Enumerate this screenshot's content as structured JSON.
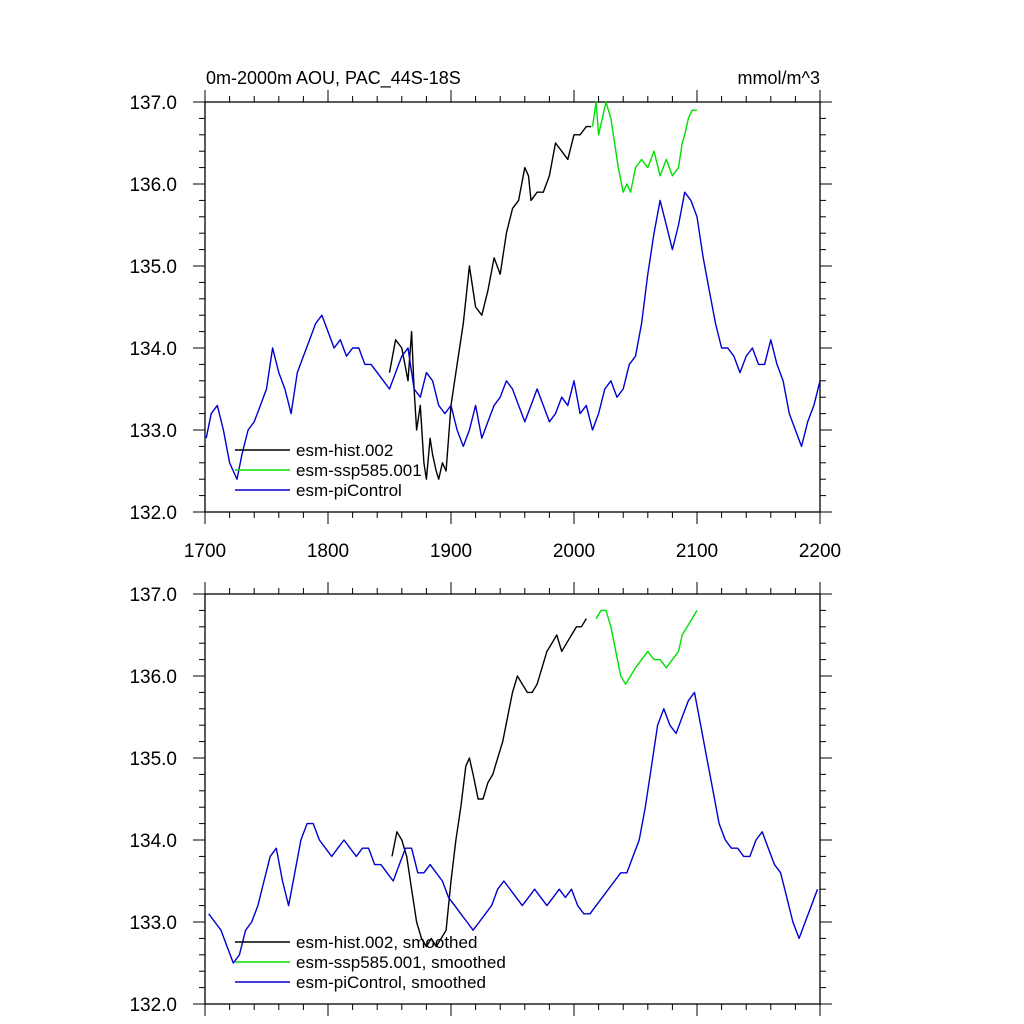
{
  "chart_data": [
    {
      "type": "line",
      "title": "0m-2000m AOU, PAC_44S-18S",
      "units": "mmol/m^3",
      "xlim": [
        1700,
        2200
      ],
      "ylim": [
        132.0,
        137.0
      ],
      "xticks": [
        "1700",
        "1800",
        "1900",
        "2000",
        "2100",
        "2200"
      ],
      "yticks": [
        "132.0",
        "133.0",
        "134.0",
        "135.0",
        "136.0",
        "137.0"
      ],
      "grid": false,
      "legend_position": "bottom-left",
      "series": [
        {
          "name": "esm-hist.002",
          "color": "#000000",
          "x": [
            1850,
            1855,
            1860,
            1865,
            1868,
            1870,
            1872,
            1875,
            1878,
            1880,
            1883,
            1885,
            1888,
            1890,
            1893,
            1896,
            1900,
            1905,
            1910,
            1915,
            1920,
            1925,
            1930,
            1935,
            1940,
            1945,
            1950,
            1955,
            1960,
            1963,
            1965,
            1970,
            1975,
            1980,
            1985,
            1990,
            1995,
            2000,
            2005,
            2010,
            2014
          ],
          "y": [
            133.7,
            134.1,
            134.0,
            133.6,
            134.2,
            133.5,
            133.0,
            133.3,
            132.6,
            132.4,
            132.9,
            132.7,
            132.5,
            132.4,
            132.6,
            132.5,
            133.3,
            133.8,
            134.3,
            135.0,
            134.5,
            134.4,
            134.7,
            135.1,
            134.9,
            135.4,
            135.7,
            135.8,
            136.2,
            136.1,
            135.8,
            135.9,
            135.9,
            136.1,
            136.5,
            136.4,
            136.3,
            136.6,
            136.6,
            136.7,
            136.7
          ]
        },
        {
          "name": "esm-ssp585.001",
          "color": "#00e000",
          "x": [
            2015,
            2018,
            2020,
            2023,
            2026,
            2030,
            2033,
            2036,
            2040,
            2043,
            2046,
            2050,
            2055,
            2060,
            2065,
            2070,
            2075,
            2080,
            2085,
            2088,
            2090,
            2093,
            2096,
            2100
          ],
          "y": [
            136.7,
            137.0,
            136.6,
            136.8,
            137.0,
            136.8,
            136.5,
            136.2,
            135.9,
            136.0,
            135.9,
            136.2,
            136.3,
            136.2,
            136.4,
            136.1,
            136.3,
            136.1,
            136.2,
            136.5,
            136.6,
            136.8,
            136.9,
            136.9
          ]
        },
        {
          "name": "esm-piControl",
          "color": "#0000d0",
          "x": [
            1701,
            1705,
            1710,
            1715,
            1720,
            1723,
            1726,
            1730,
            1735,
            1740,
            1745,
            1750,
            1755,
            1760,
            1765,
            1770,
            1775,
            1780,
            1785,
            1790,
            1795,
            1800,
            1805,
            1810,
            1815,
            1820,
            1825,
            1830,
            1835,
            1840,
            1845,
            1850,
            1855,
            1860,
            1865,
            1870,
            1875,
            1880,
            1885,
            1890,
            1895,
            1900,
            1905,
            1910,
            1915,
            1920,
            1925,
            1930,
            1935,
            1940,
            1945,
            1950,
            1955,
            1960,
            1965,
            1970,
            1975,
            1980,
            1985,
            1990,
            1995,
            2000,
            2005,
            2010,
            2015,
            2020,
            2025,
            2030,
            2035,
            2040,
            2045,
            2050,
            2055,
            2060,
            2065,
            2070,
            2075,
            2080,
            2085,
            2090,
            2095,
            2100,
            2105,
            2110,
            2115,
            2120,
            2125,
            2130,
            2135,
            2140,
            2145,
            2150,
            2155,
            2160,
            2165,
            2170,
            2175,
            2180,
            2185,
            2190,
            2195,
            2200
          ],
          "y": [
            132.9,
            133.2,
            133.3,
            133.0,
            132.6,
            132.5,
            132.4,
            132.7,
            133.0,
            133.1,
            133.3,
            133.5,
            134.0,
            133.7,
            133.5,
            133.2,
            133.7,
            133.9,
            134.1,
            134.3,
            134.4,
            134.2,
            134.0,
            134.1,
            133.9,
            134.0,
            134.0,
            133.8,
            133.8,
            133.7,
            133.6,
            133.5,
            133.7,
            133.9,
            134.0,
            133.5,
            133.4,
            133.7,
            133.6,
            133.3,
            133.2,
            133.3,
            133.0,
            132.8,
            133.0,
            133.3,
            132.9,
            133.1,
            133.3,
            133.4,
            133.6,
            133.5,
            133.3,
            133.1,
            133.3,
            133.5,
            133.3,
            133.1,
            133.2,
            133.4,
            133.3,
            133.6,
            133.2,
            133.3,
            133.0,
            133.2,
            133.5,
            133.6,
            133.4,
            133.5,
            133.8,
            133.9,
            134.3,
            134.9,
            135.4,
            135.8,
            135.5,
            135.2,
            135.5,
            135.9,
            135.8,
            135.6,
            135.1,
            134.7,
            134.3,
            134.0,
            134.0,
            133.9,
            133.7,
            133.9,
            134.0,
            133.8,
            133.8,
            134.1,
            133.8,
            133.6,
            133.2,
            133.0,
            132.8,
            133.1,
            133.3,
            133.6
          ]
        }
      ]
    },
    {
      "type": "line",
      "title": "",
      "xlim": [
        1700,
        2200
      ],
      "ylim": [
        132.0,
        137.0
      ],
      "yticks": [
        "132.0",
        "133.0",
        "134.0",
        "135.0",
        "136.0",
        "137.0"
      ],
      "grid": false,
      "legend_position": "bottom-left",
      "series": [
        {
          "name": "esm-hist.002, smoothed",
          "color": "#000000",
          "x": [
            1852,
            1856,
            1860,
            1864,
            1868,
            1872,
            1876,
            1880,
            1884,
            1888,
            1892,
            1896,
            1900,
            1904,
            1908,
            1912,
            1915,
            1918,
            1922,
            1926,
            1930,
            1934,
            1938,
            1942,
            1946,
            1950,
            1954,
            1958,
            1962,
            1966,
            1970,
            1974,
            1978,
            1982,
            1986,
            1990,
            1994,
            1998,
            2002,
            2006,
            2010
          ],
          "y": [
            133.8,
            134.1,
            134.0,
            133.8,
            133.4,
            133.0,
            132.8,
            132.7,
            132.8,
            132.7,
            132.8,
            132.9,
            133.5,
            134.0,
            134.4,
            134.9,
            135.0,
            134.8,
            134.5,
            134.5,
            134.7,
            134.8,
            135.0,
            135.2,
            135.5,
            135.8,
            136.0,
            135.9,
            135.8,
            135.8,
            135.9,
            136.1,
            136.3,
            136.4,
            136.5,
            136.3,
            136.4,
            136.5,
            136.6,
            136.6,
            136.7
          ]
        },
        {
          "name": "esm-ssp585.001, smoothed",
          "color": "#00e000",
          "x": [
            2018,
            2022,
            2026,
            2030,
            2034,
            2038,
            2042,
            2046,
            2050,
            2055,
            2060,
            2065,
            2070,
            2075,
            2080,
            2085,
            2088,
            2092,
            2096,
            2100
          ],
          "y": [
            136.7,
            136.8,
            136.8,
            136.6,
            136.3,
            136.0,
            135.9,
            136.0,
            136.1,
            136.2,
            136.3,
            136.2,
            136.2,
            136.1,
            136.2,
            136.3,
            136.5,
            136.6,
            136.7,
            136.8
          ]
        },
        {
          "name": "esm-piControl, smoothed",
          "color": "#0000d0",
          "x": [
            1703,
            1708,
            1713,
            1718,
            1723,
            1728,
            1733,
            1738,
            1743,
            1748,
            1753,
            1758,
            1763,
            1768,
            1773,
            1778,
            1783,
            1788,
            1793,
            1798,
            1803,
            1808,
            1813,
            1818,
            1823,
            1828,
            1833,
            1838,
            1843,
            1848,
            1853,
            1858,
            1863,
            1868,
            1873,
            1878,
            1883,
            1888,
            1893,
            1898,
            1903,
            1908,
            1913,
            1918,
            1923,
            1928,
            1933,
            1938,
            1943,
            1948,
            1953,
            1958,
            1963,
            1968,
            1973,
            1978,
            1983,
            1988,
            1993,
            1998,
            2003,
            2008,
            2013,
            2018,
            2023,
            2028,
            2033,
            2038,
            2043,
            2048,
            2053,
            2058,
            2063,
            2068,
            2073,
            2078,
            2083,
            2088,
            2093,
            2098,
            2103,
            2108,
            2113,
            2118,
            2123,
            2128,
            2133,
            2138,
            2143,
            2148,
            2153,
            2158,
            2163,
            2168,
            2173,
            2178,
            2183,
            2188,
            2193,
            2198
          ],
          "y": [
            133.1,
            133.0,
            132.9,
            132.7,
            132.5,
            132.6,
            132.9,
            133.0,
            133.2,
            133.5,
            133.8,
            133.9,
            133.5,
            133.2,
            133.6,
            134.0,
            134.2,
            134.2,
            134.0,
            133.9,
            133.8,
            133.9,
            134.0,
            133.9,
            133.8,
            133.9,
            133.9,
            133.7,
            133.7,
            133.6,
            133.5,
            133.7,
            133.9,
            133.9,
            133.6,
            133.6,
            133.7,
            133.6,
            133.5,
            133.3,
            133.2,
            133.1,
            133.0,
            132.9,
            133.0,
            133.1,
            133.2,
            133.4,
            133.5,
            133.4,
            133.3,
            133.2,
            133.3,
            133.4,
            133.3,
            133.2,
            133.3,
            133.4,
            133.3,
            133.4,
            133.2,
            133.1,
            133.1,
            133.2,
            133.3,
            133.4,
            133.5,
            133.6,
            133.6,
            133.8,
            134.0,
            134.4,
            134.9,
            135.4,
            135.6,
            135.4,
            135.3,
            135.5,
            135.7,
            135.8,
            135.4,
            135.0,
            134.6,
            134.2,
            134.0,
            133.9,
            133.9,
            133.8,
            133.8,
            134.0,
            134.1,
            133.9,
            133.7,
            133.6,
            133.3,
            133.0,
            132.8,
            133.0,
            133.2,
            133.4
          ]
        }
      ]
    }
  ]
}
